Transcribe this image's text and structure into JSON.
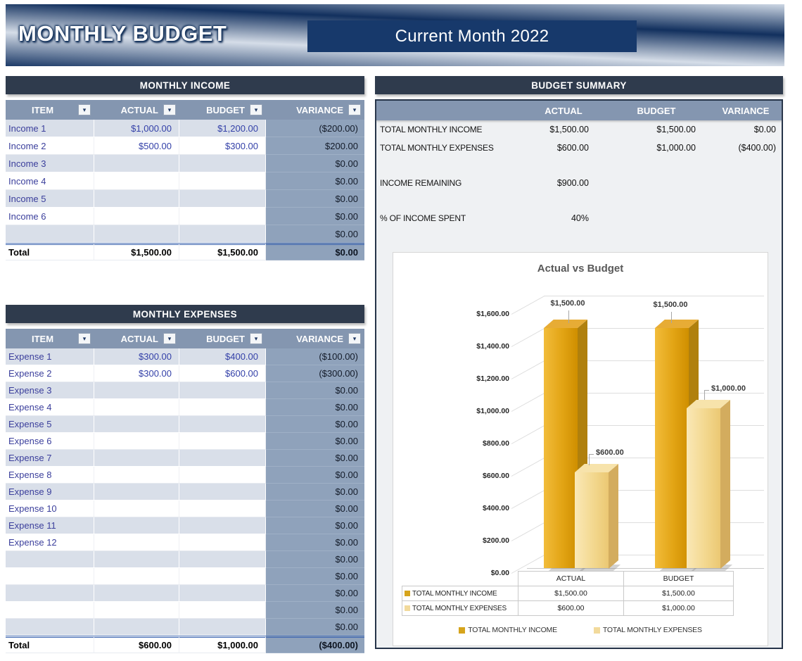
{
  "banner": {
    "title": "MONTHLY BUDGET",
    "subtitle": "Current Month 2022"
  },
  "colors": {
    "banner_navy": "#17396B",
    "title_bar": "#2F3B4D",
    "column_header": "#8496B0",
    "variance_fill": "#8FA2BB",
    "row_stripe": "#D9DFE9",
    "cell_text_blue": "#3340A8",
    "income_bar": "#DFA123",
    "expense_bar": "#F5DEA3"
  },
  "income_table": {
    "title": "MONTHLY INCOME",
    "columns": [
      "ITEM",
      "ACTUAL",
      "BUDGET",
      "VARIANCE"
    ],
    "rows": [
      {
        "item": "Income 1",
        "actual": "$1,000.00",
        "budget": "$1,200.00",
        "variance": "($200.00)"
      },
      {
        "item": "Income 2",
        "actual": "$500.00",
        "budget": "$300.00",
        "variance": "$200.00"
      },
      {
        "item": "Income 3",
        "actual": "",
        "budget": "",
        "variance": "$0.00"
      },
      {
        "item": "Income 4",
        "actual": "",
        "budget": "",
        "variance": "$0.00"
      },
      {
        "item": "Income 5",
        "actual": "",
        "budget": "",
        "variance": "$0.00"
      },
      {
        "item": "Income 6",
        "actual": "",
        "budget": "",
        "variance": "$0.00"
      },
      {
        "item": "",
        "actual": "",
        "budget": "",
        "variance": "$0.00"
      }
    ],
    "total": {
      "label": "Total",
      "actual": "$1,500.00",
      "budget": "$1,500.00",
      "variance": "$0.00"
    }
  },
  "expense_table": {
    "title": "MONTHLY EXPENSES",
    "columns": [
      "ITEM",
      "ACTUAL",
      "BUDGET",
      "VARIANCE"
    ],
    "rows": [
      {
        "item": "Expense 1",
        "actual": "$300.00",
        "budget": "$400.00",
        "variance": "($100.00)"
      },
      {
        "item": "Expense 2",
        "actual": "$300.00",
        "budget": "$600.00",
        "variance": "($300.00)"
      },
      {
        "item": "Expense 3",
        "actual": "",
        "budget": "",
        "variance": "$0.00"
      },
      {
        "item": "Expense 4",
        "actual": "",
        "budget": "",
        "variance": "$0.00"
      },
      {
        "item": "Expense 5",
        "actual": "",
        "budget": "",
        "variance": "$0.00"
      },
      {
        "item": "Expense 6",
        "actual": "",
        "budget": "",
        "variance": "$0.00"
      },
      {
        "item": "Expense 7",
        "actual": "",
        "budget": "",
        "variance": "$0.00"
      },
      {
        "item": "Expense 8",
        "actual": "",
        "budget": "",
        "variance": "$0.00"
      },
      {
        "item": "Expense 9",
        "actual": "",
        "budget": "",
        "variance": "$0.00"
      },
      {
        "item": "Expense 10",
        "actual": "",
        "budget": "",
        "variance": "$0.00"
      },
      {
        "item": "Expense 11",
        "actual": "",
        "budget": "",
        "variance": "$0.00"
      },
      {
        "item": "Expense 12",
        "actual": "",
        "budget": "",
        "variance": "$0.00"
      },
      {
        "item": "",
        "actual": "",
        "budget": "",
        "variance": "$0.00"
      },
      {
        "item": "",
        "actual": "",
        "budget": "",
        "variance": "$0.00"
      },
      {
        "item": "",
        "actual": "",
        "budget": "",
        "variance": "$0.00"
      },
      {
        "item": "",
        "actual": "",
        "budget": "",
        "variance": "$0.00"
      },
      {
        "item": "",
        "actual": "",
        "budget": "",
        "variance": "$0.00"
      }
    ],
    "total": {
      "label": "Total",
      "actual": "$600.00",
      "budget": "$1,000.00",
      "variance": "($400.00)"
    }
  },
  "summary": {
    "title": "BUDGET SUMMARY",
    "columns": [
      "ACTUAL",
      "BUDGET",
      "VARIANCE"
    ],
    "rows": [
      {
        "label": "TOTAL MONTHLY INCOME",
        "actual": "$1,500.00",
        "budget": "$1,500.00",
        "variance": "$0.00"
      },
      {
        "label": "TOTAL MONTHLY EXPENSES",
        "actual": "$600.00",
        "budget": "$1,000.00",
        "variance": "($400.00)"
      },
      {
        "label": "INCOME REMAINING",
        "actual": "$900.00",
        "budget": "",
        "variance": ""
      },
      {
        "label": "% OF INCOME SPENT",
        "actual": "40%",
        "budget": "",
        "variance": ""
      }
    ]
  },
  "chart_data": {
    "type": "bar",
    "title": "Actual vs Budget",
    "categories": [
      "ACTUAL",
      "BUDGET"
    ],
    "series": [
      {
        "name": "TOTAL MONTHLY INCOME",
        "values": [
          1500,
          1500
        ],
        "labels": [
          "$1,500.00",
          "$1,500.00"
        ],
        "color": "#D6A41C"
      },
      {
        "name": "TOTAL MONTHLY EXPENSES",
        "values": [
          600,
          1000
        ],
        "labels": [
          "$600.00",
          "$1,000.00"
        ],
        "color": "#F2DA9C"
      }
    ],
    "ylim": [
      0,
      1600
    ],
    "ytick_step": 200,
    "yticks": [
      "$1,600.00",
      "$1,400.00",
      "$1,200.00",
      "$1,000.00",
      "$800.00",
      "$600.00",
      "$400.00",
      "$200.00",
      "$0.00"
    ],
    "grid": true,
    "style": "3d-column",
    "legend_position": "bottom",
    "data_table": {
      "columns": [
        "ACTUAL",
        "BUDGET"
      ],
      "rows": [
        {
          "name": "TOTAL MONTHLY INCOME",
          "values": [
            "$1,500.00",
            "$1,500.00"
          ]
        },
        {
          "name": "TOTAL MONTHLY EXPENSES",
          "values": [
            "$600.00",
            "$1,000.00"
          ]
        }
      ]
    }
  }
}
